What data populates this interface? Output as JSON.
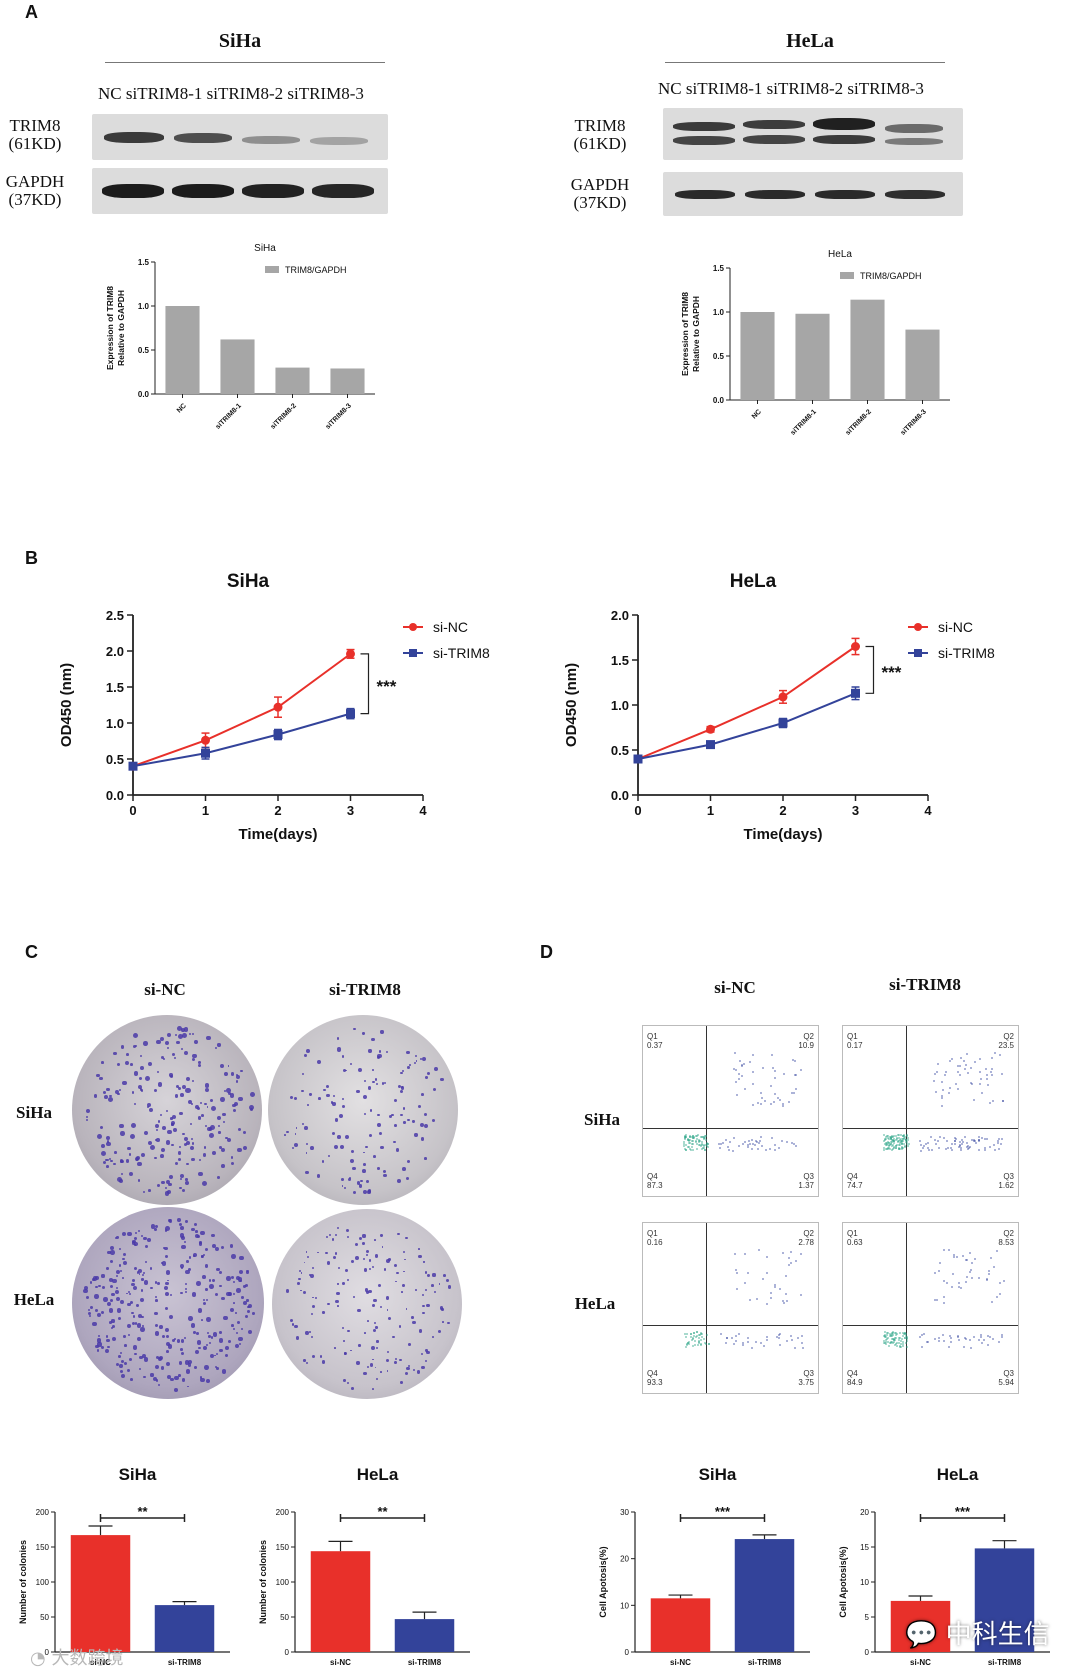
{
  "panels": {
    "a": "A",
    "b": "B",
    "c": "C",
    "d": "D"
  },
  "panelA": {
    "siha": {
      "title": "SiHa",
      "lanes": [
        "NC",
        "siTRIM8-1",
        "siTRIM8-2",
        "siTRIM8-3"
      ],
      "row1": [
        "TRIM8",
        "(61KD)"
      ],
      "row2": [
        "GAPDH",
        "(37KD)"
      ]
    },
    "hela": {
      "title": "HeLa",
      "lanes": [
        "NC",
        "siTRIM8-1",
        "siTRIM8-2",
        "siTRIM8-3"
      ],
      "row1": [
        "TRIM8",
        "(61KD)"
      ],
      "row2": [
        "GAPDH",
        "(37KD)"
      ]
    }
  },
  "panelC": {
    "col1": "si-NC",
    "col2": "si-TRIM8",
    "row1": "SiHa",
    "row2": "HeLa"
  },
  "panelD": {
    "col1": "si-NC",
    "col2": "si-TRIM8",
    "row1": "SiHa",
    "row2": "HeLa",
    "plots": [
      {
        "name": "siha-si-nc",
        "q1": "0.37",
        "q2": "10.9",
        "q3": "1.37",
        "q4": "87.3"
      },
      {
        "name": "siha-si-trim8",
        "q1": "0.17",
        "q2": "23.5",
        "q3": "1.62",
        "q4": "74.7"
      },
      {
        "name": "hela-si-nc",
        "q1": "0.16",
        "q2": "2.78",
        "q3": "3.75",
        "q4": "93.3"
      },
      {
        "name": "hela-si-trim8",
        "q1": "0.63",
        "q2": "8.53",
        "q3": "5.94",
        "q4": "84.9"
      }
    ],
    "quadrant_names": [
      "Q1",
      "Q2",
      "Q3",
      "Q4"
    ]
  },
  "watermark": {
    "left": "大数跨境",
    "right": "中科生信"
  },
  "colors": {
    "red": "#e8302a",
    "blue": "#33439a",
    "gray": "#a6a6a6"
  },
  "chart_data": [
    {
      "id": "a-siha",
      "type": "bar",
      "title": "SiHa",
      "categories": [
        "NC",
        "siTRIM8-1",
        "siTRIM8-2",
        "siTRIM8-3"
      ],
      "values": [
        1.0,
        0.62,
        0.3,
        0.29
      ],
      "legend": "TRIM8/GAPDH",
      "ylabel": "Expression of TRIM8 Relative to GAPDH",
      "ylim": [
        0,
        1.5
      ],
      "yticks": [
        "0.0",
        "0.5",
        "1.0",
        "1.5"
      ]
    },
    {
      "id": "a-hela",
      "type": "bar",
      "title": "HeLa",
      "categories": [
        "NC",
        "siTRIM8-1",
        "siTRIM8-2",
        "siTRIM8-3"
      ],
      "values": [
        1.0,
        0.98,
        1.14,
        0.8
      ],
      "legend": "TRIM8/GAPDH",
      "ylabel": "Expression of TRIM8 Relative to GAPDH",
      "ylim": [
        0,
        1.5
      ],
      "yticks": [
        "0.0",
        "0.5",
        "1.0",
        "1.5"
      ]
    },
    {
      "id": "b-siha",
      "type": "line",
      "title": "SiHa",
      "x": [
        0,
        1,
        2,
        3
      ],
      "xticks": [
        "0",
        "1",
        "2",
        "3",
        "4"
      ],
      "xlim": [
        0,
        4
      ],
      "ylim": [
        0,
        2.5
      ],
      "yticks": [
        "0.0",
        "0.5",
        "1.0",
        "1.5",
        "2.0",
        "2.5"
      ],
      "xlabel": "Time(days)",
      "ylabel": "OD450 (nm)",
      "significance": "***",
      "series": [
        {
          "name": "si-NC",
          "values": [
            0.4,
            0.76,
            1.22,
            1.96
          ],
          "err": [
            0.03,
            0.1,
            0.14,
            0.06
          ]
        },
        {
          "name": "si-TRIM8",
          "values": [
            0.4,
            0.58,
            0.84,
            1.13
          ],
          "err": [
            0.03,
            0.08,
            0.07,
            0.07
          ]
        }
      ]
    },
    {
      "id": "b-hela",
      "type": "line",
      "title": "HeLa",
      "x": [
        0,
        1,
        2,
        3
      ],
      "xticks": [
        "0",
        "1",
        "2",
        "3",
        "4"
      ],
      "xlim": [
        0,
        4
      ],
      "ylim": [
        0,
        2.0
      ],
      "yticks": [
        "0.0",
        "0.5",
        "1.0",
        "1.5",
        "2.0"
      ],
      "xlabel": "Time(days)",
      "ylabel": "OD450 (nm)",
      "significance": "***",
      "series": [
        {
          "name": "si-NC",
          "values": [
            0.4,
            0.73,
            1.09,
            1.65
          ],
          "err": [
            0.02,
            0.03,
            0.07,
            0.09
          ]
        },
        {
          "name": "si-TRIM8",
          "values": [
            0.4,
            0.56,
            0.8,
            1.13
          ],
          "err": [
            0.02,
            0.03,
            0.05,
            0.07
          ]
        }
      ]
    },
    {
      "id": "c-siha",
      "type": "bar",
      "title": "SiHa",
      "categories": [
        "si-NC",
        "si-TRIM8"
      ],
      "values": [
        167,
        67
      ],
      "err": [
        13,
        5
      ],
      "ylabel": "Number of colonies",
      "ylim": [
        0,
        200
      ],
      "yticks": [
        "0",
        "50",
        "100",
        "150",
        "200"
      ],
      "significance": "**"
    },
    {
      "id": "c-hela",
      "type": "bar",
      "title": "HeLa",
      "categories": [
        "si-NC",
        "si-TRIM8"
      ],
      "values": [
        144,
        47
      ],
      "err": [
        14,
        10
      ],
      "ylabel": "Number of colonies",
      "ylim": [
        0,
        200
      ],
      "yticks": [
        "0",
        "50",
        "100",
        "150",
        "200"
      ],
      "significance": "**"
    },
    {
      "id": "d-siha",
      "type": "bar",
      "title": "SiHa",
      "categories": [
        "si-NC",
        "si-TRIM8"
      ],
      "values": [
        11.5,
        24.2
      ],
      "err": [
        0.7,
        0.9
      ],
      "ylabel": "Cell Apotosis(%)",
      "ylim": [
        0,
        30
      ],
      "yticks": [
        "0",
        "10",
        "20",
        "30"
      ],
      "significance": "***"
    },
    {
      "id": "d-hela",
      "type": "bar",
      "title": "HeLa",
      "categories": [
        "si-NC",
        "si-TRIM8"
      ],
      "values": [
        7.3,
        14.8
      ],
      "err": [
        0.7,
        1.1
      ],
      "ylabel": "Cell Apotosis(%)",
      "ylim": [
        0,
        20
      ],
      "yticks": [
        "0",
        "5",
        "10",
        "15",
        "20"
      ],
      "significance": "***"
    }
  ]
}
